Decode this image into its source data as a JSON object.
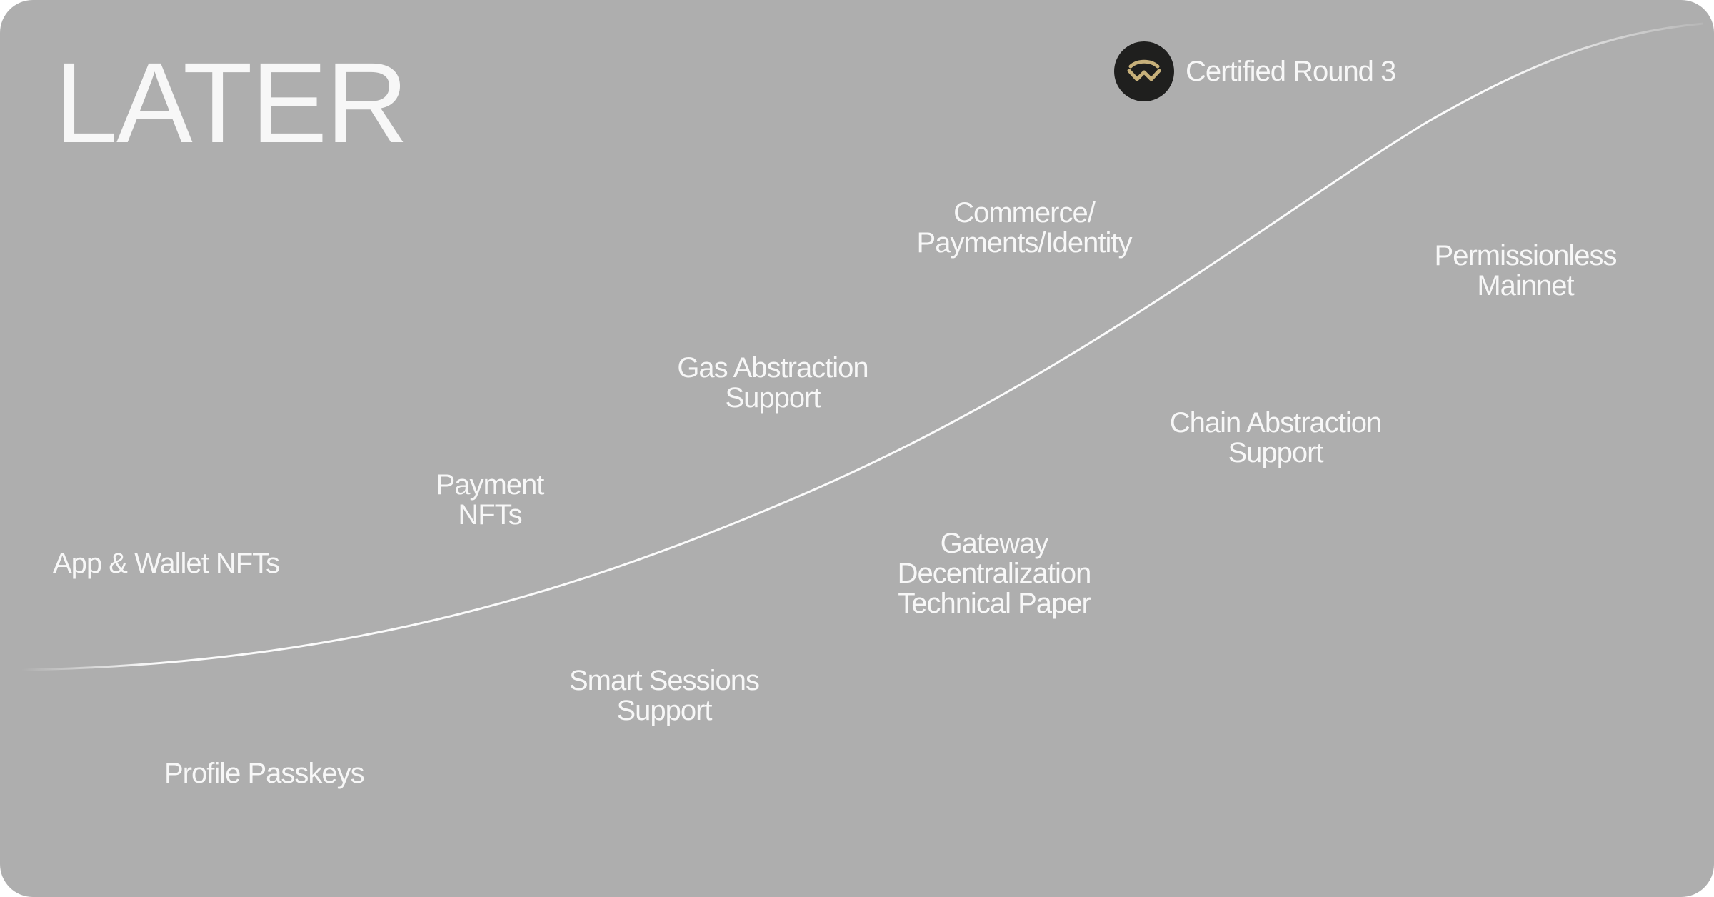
{
  "title": "LATER",
  "badge": {
    "label": "Certified Round 3",
    "icon": "walletconnect-logo-icon",
    "logo_bg": "#1f1f1e",
    "logo_color": "#c7b07a"
  },
  "colors": {
    "background": "#aeaeae",
    "text": "#f7f7f7",
    "curve": "#ffffff"
  },
  "milestones": {
    "app_wallet_nfts": [
      "App & Wallet NFTs"
    ],
    "profile_passkeys": [
      "Profile Passkeys"
    ],
    "payment_nfts": [
      "Payment",
      "NFTs"
    ],
    "smart_sessions": [
      "Smart Sessions",
      "Support"
    ],
    "gas_abstraction": [
      "Gas Abstraction",
      "Support"
    ],
    "gateway_decentralization": [
      "Gateway",
      "Decentralization",
      "Technical Paper"
    ],
    "commerce": [
      "Commerce/",
      "Payments/Identity"
    ],
    "chain_abstraction": [
      "Chain Abstraction",
      "Support"
    ],
    "permissionless_mainnet": [
      "Permissionless",
      "Mainnet"
    ]
  }
}
